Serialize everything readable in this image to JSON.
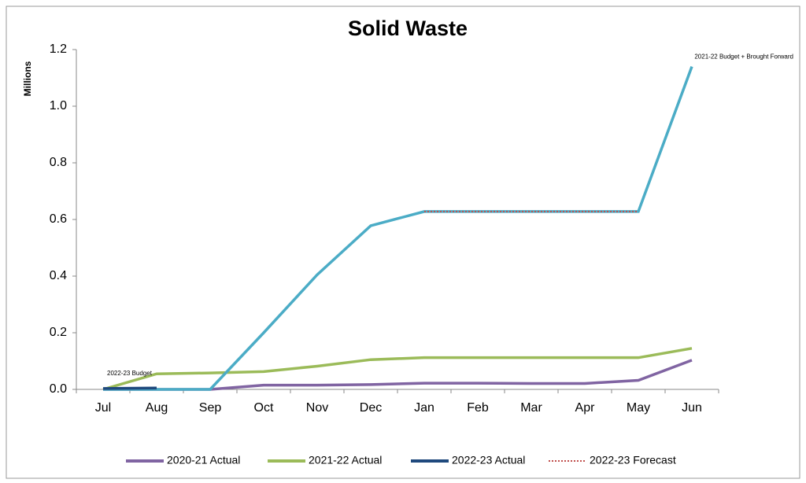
{
  "chart_data": {
    "type": "line",
    "title": "Solid Waste",
    "y_label": "Millions",
    "categories": [
      "Jul",
      "Aug",
      "Sep",
      "Oct",
      "Nov",
      "Dec",
      "Jan",
      "Feb",
      "Mar",
      "Apr",
      "May",
      "Jun"
    ],
    "ylim": [
      0,
      1.2
    ],
    "yticks": [
      {
        "value": 0,
        "label": "0.0"
      },
      {
        "value": 0.2,
        "label": "0.2"
      },
      {
        "value": 0.4,
        "label": "0.4"
      },
      {
        "value": 0.6,
        "label": "0.6"
      },
      {
        "value": 0.8,
        "label": "0.8"
      },
      {
        "value": 1.0,
        "label": "1.0"
      },
      {
        "value": 1.2,
        "label": "1.2"
      }
    ],
    "series": [
      {
        "name": "2020-21 Actual",
        "color": "#8064a2",
        "values": [
          0,
          0,
          0,
          0.015,
          0.015,
          0.017,
          0.022,
          0.022,
          0.021,
          0.021,
          0.032,
          0.103
        ]
      },
      {
        "name": "2021-22 Actual",
        "color": "#9bbb59",
        "values": [
          0,
          0.055,
          0.058,
          0.063,
          0.082,
          0.105,
          0.112,
          0.112,
          0.112,
          0.112,
          0.112,
          0.145
        ]
      },
      {
        "color": "#4bacc6",
        "values": [
          0,
          0,
          0,
          0.2,
          0.405,
          0.578,
          0.628,
          0.628,
          0.628,
          0.628,
          0.628,
          1.14
        ]
      },
      {
        "name": "2022-23 Actual",
        "color": "#1f497d",
        "values": [
          0.003,
          0.005,
          null,
          null,
          null,
          null,
          null,
          null,
          null,
          null,
          null,
          null
        ]
      },
      {
        "name": "2022-23 Forecast",
        "color": "#c0504d",
        "dotted": true,
        "values": [
          null,
          null,
          null,
          null,
          null,
          null,
          0.628,
          0.628,
          0.628,
          0.628,
          0.628,
          null
        ]
      }
    ],
    "annotations": [
      "2022-23 Budget",
      "2021-22 Budget + Brought Forward"
    ]
  }
}
